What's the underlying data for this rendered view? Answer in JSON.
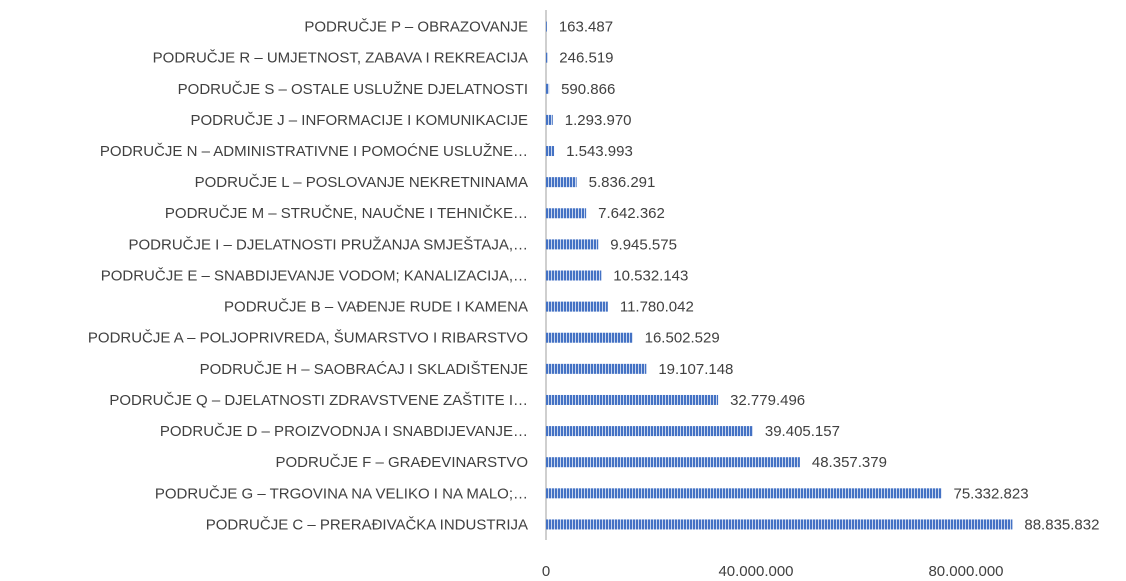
{
  "chart_data": {
    "type": "barh",
    "categories": [
      "PODRUČJE P – OBRAZOVANJE",
      "PODRUČJE R – UMJETNOST, ZABAVA I REKREACIJA",
      "PODRUČJE S – OSTALE USLUŽNE DJELATNOSTI",
      "PODRUČJE J – INFORMACIJE I KOMUNIKACIJE",
      "PODRUČJE N – ADMINISTRATIVNE I POMOĆNE USLUŽNE…",
      "PODRUČJE L – POSLOVANJE NEKRETNINAMA",
      "PODRUČJE M – STRUČNE, NAUČNE I TEHNIČKE…",
      "PODRUČJE I – DJELATNOSTI PRUŽANJA SMJEŠTAJA,…",
      "PODRUČJE E – SNABDIJEVANJE VODOM; KANALIZACIJA,…",
      "PODRUČJE B – VAĐENJE RUDE I KAMENA",
      "PODRUČJE A – POLJOPRIVREDA,  ŠUMARSTVO I RIBARSTVO",
      "PODRUČJE H – SAOBRAĆAJ I SKLADIŠTENJE",
      "PODRUČJE Q – DJELATNOSTI ZDRAVSTVENE ZAŠTITE I…",
      "PODRUČJE D – PROIZVODNJA I SNABDIJEVANJE…",
      "PODRUČJE F – GRAĐEVINARSTVO",
      "PODRUČJE G – TRGOVINA NA VELIKO I NA MALO;…",
      "PODRUČJE C – PRERAĐIVAČKA INDUSTRIJA"
    ],
    "values": [
      163487,
      246519,
      590866,
      1293970,
      1543993,
      5836291,
      7642362,
      9945575,
      10532143,
      11780042,
      16502529,
      19107148,
      32779496,
      39405157,
      48357379,
      75332823,
      88835832
    ],
    "value_labels": [
      "163.487",
      "246.519",
      "590.866",
      "1.293.970",
      "1.543.993",
      "5.836.291",
      "7.642.362",
      "9.945.575",
      "10.532.143",
      "11.780.042",
      "16.502.529",
      "19.107.148",
      "32.779.496",
      "39.405.157",
      "48.357.379",
      "75.332.823",
      "88.835.832"
    ],
    "color": "#4472c4",
    "xlim": [
      0,
      100000000
    ],
    "xticks": [
      0,
      {
        "value": 40000000,
        "label": "40.000.000"
      },
      {
        "value": 80000000,
        "label": "80.000.000"
      }
    ]
  }
}
